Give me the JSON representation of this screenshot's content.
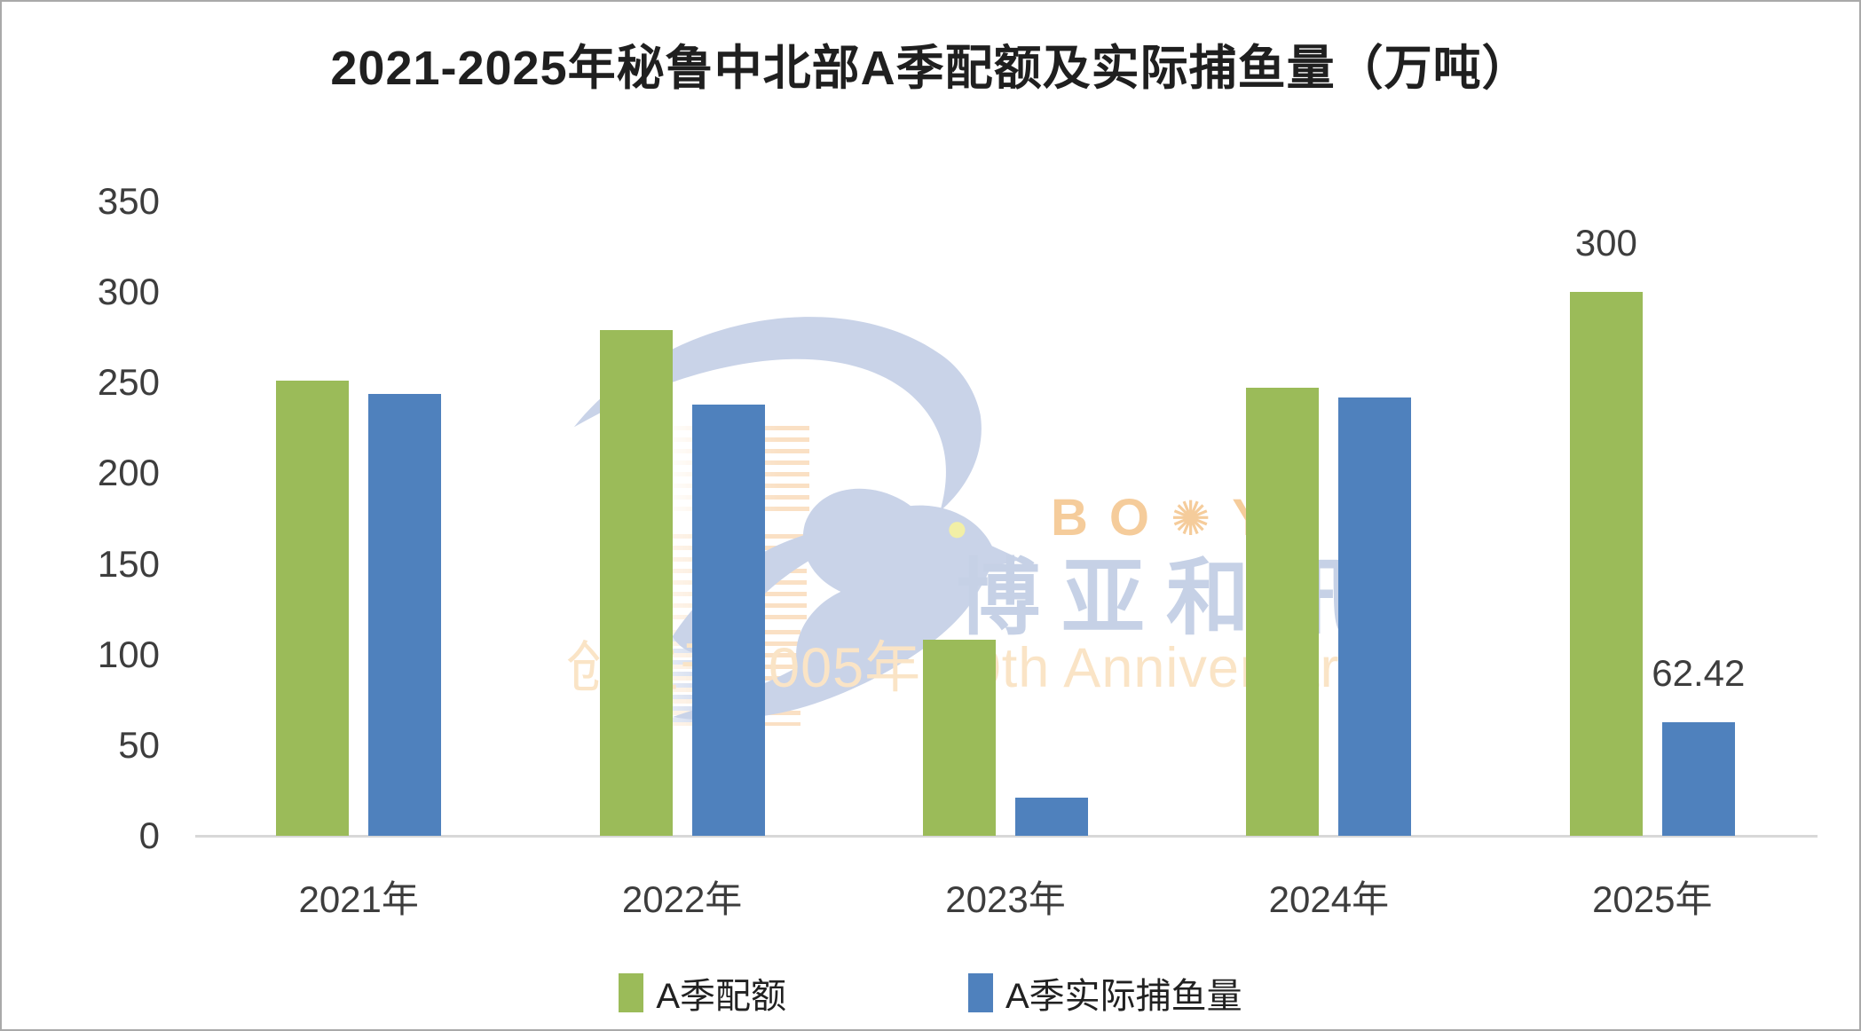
{
  "chart_data": {
    "type": "bar",
    "title": "2021-2025年秘鲁中北部A季配额及实际捕鱼量（万吨）",
    "categories": [
      "2021年",
      "2022年",
      "2023年",
      "2024年",
      "2025年"
    ],
    "series": [
      {
        "name": "A季配额",
        "color": "#9BBB59",
        "values": [
          251,
          279,
          108,
          247,
          300
        ],
        "point_labels": [
          null,
          null,
          null,
          null,
          "300"
        ]
      },
      {
        "name": "A季实际捕鱼量",
        "color": "#4F81BD",
        "values": [
          244,
          238,
          21,
          242,
          62.42
        ],
        "point_labels": [
          null,
          null,
          null,
          null,
          "62.42"
        ]
      }
    ],
    "xlabel": "",
    "ylabel": "",
    "ylim": [
      0,
      350
    ],
    "yticks": [
      0,
      50,
      100,
      150,
      200,
      250,
      300,
      350
    ],
    "grid": false,
    "legend_position": "bottom"
  },
  "axis": {
    "line_color": "#D8D8D8",
    "label_color": "#3D3D3D"
  },
  "watermark": {
    "brand_en_left": "BO",
    "sun_icon": "✺",
    "brand_en_right": "YAR",
    "brand_cn": "博亚和讯",
    "anniversary": "创立于2005年 20th Anniversary",
    "colors": {
      "bird": "#C9D3E8",
      "eye": "#F2EFA6",
      "brand_en": "#F5CC9B",
      "brand_cn": "#C6D1E6",
      "anniversary": "#FAE4C6"
    }
  }
}
